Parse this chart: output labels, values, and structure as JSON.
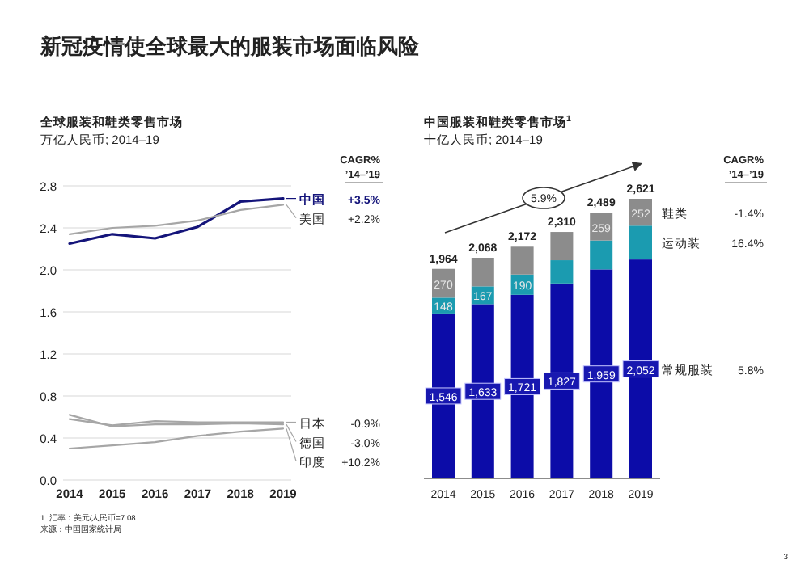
{
  "chart_data": [
    {
      "type": "line",
      "title": "全球服装和鞋类零售市场",
      "subtitle": "万亿人民币; 2014–19",
      "categories": [
        "2014",
        "2015",
        "2016",
        "2017",
        "2018",
        "2019"
      ],
      "series": [
        {
          "name": "中国",
          "color": "#14147a",
          "values": [
            2.25,
            2.34,
            2.3,
            2.41,
            2.65,
            2.68
          ]
        },
        {
          "name": "美国",
          "color": "#a6a6a6",
          "values": [
            2.34,
            2.4,
            2.42,
            2.47,
            2.57,
            2.62
          ]
        },
        {
          "name": "日本",
          "color": "#a6a6a6",
          "values": [
            0.58,
            0.52,
            0.56,
            0.55,
            0.55,
            0.55
          ]
        },
        {
          "name": "德国",
          "color": "#a6a6a6",
          "values": [
            0.62,
            0.51,
            0.53,
            0.53,
            0.54,
            0.53
          ]
        },
        {
          "name": "印度",
          "color": "#a6a6a6",
          "values": [
            0.3,
            0.33,
            0.36,
            0.42,
            0.46,
            0.49
          ]
        }
      ],
      "ylim": [
        0,
        2.8
      ],
      "yticks": [
        {
          "value": 0,
          "label": "0.0"
        },
        0.4,
        0.8,
        1.2,
        1.6,
        {
          "value": 2,
          "label": "2.0"
        },
        2.4,
        2.8
      ],
      "grid": "y",
      "legend": "right",
      "annotations": [
        "新冠疫情使全球最大的服装市场面临风险",
        "CAGR%",
        "’14–’19",
        "+3.5%",
        "+2.2%",
        "-0.9%",
        "-3.0%",
        "+10.2%",
        "1. 汇率：美元/人民币=7.08",
        "来源：中国国家统计局"
      ]
    },
    {
      "type": "bar",
      "stacked": true,
      "title": "中国服装和鞋类零售市场$^{1}$",
      "subtitle": "十亿人民币; 2014–19",
      "categories": [
        "2014",
        "2015",
        "2016",
        "2017",
        "2018",
        "2019"
      ],
      "series": [
        {
          "name": "常规服装",
          "color": "#0c0ca8",
          "values": [
            1546,
            1633,
            1721,
            1827,
            1959,
            2052
          ],
          "value_labels": [
            "1,546",
            "1,633",
            "1,721",
            "1,827",
            "1,959",
            "2,052"
          ]
        },
        {
          "name": "运动装",
          "color": "#1b9bb0",
          "values": [
            148,
            167,
            190,
            218,
            271,
            317
          ],
          "value_labels": [
            "148",
            "167",
            "190",
            null,
            null,
            null
          ]
        },
        {
          "name": "鞋类",
          "color": "#8c8c8c",
          "values": [
            270,
            268,
            261,
            265,
            259,
            252
          ],
          "value_labels": [
            "270",
            null,
            null,
            null,
            "259",
            "252"
          ]
        }
      ],
      "legend": "right",
      "totals": [
        "1,964",
        "2,068",
        "2,172",
        "2,310",
        "2,489",
        "2,621"
      ],
      "annotations": [
        "5.9%",
        "CAGR%",
        "’14–’19",
        "5.8%",
        "16.4%",
        "-1.4%",
        "3"
      ]
    }
  ]
}
